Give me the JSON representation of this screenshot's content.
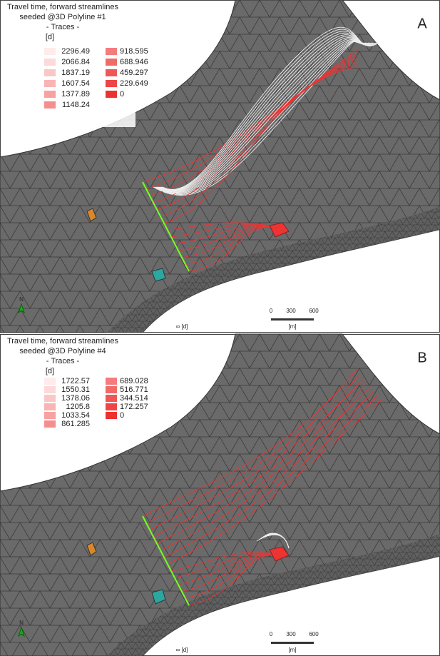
{
  "panels": [
    {
      "label": "A",
      "title_lines": [
        "Travel time, forward streamlines",
        "seeded @3D Polyline #1",
        "- Traces -"
      ],
      "unit": "[d]",
      "legend_col1": [
        "2296.49",
        "2066.84",
        "1837.19",
        "1607.54",
        "1377.89",
        "1148.24"
      ],
      "legend_col2": [
        "918.595",
        "688.946",
        "459.297",
        "229.649",
        "0"
      ],
      "scale_ticks": [
        "0",
        "300",
        "600"
      ],
      "scale_unit": "[m]",
      "infinity_label": "∞ [d]",
      "north": "N"
    },
    {
      "label": "B",
      "title_lines": [
        "Travel time, forward streamlines",
        "seeded @3D Polyline #4",
        "- Traces -"
      ],
      "unit": "[d]",
      "legend_col1": [
        "1722.57",
        "1550.31",
        "1378.06",
        "1205.8",
        "1033.54",
        "861.285"
      ],
      "legend_col2": [
        "689.028",
        "516.771",
        "344.514",
        "172.257",
        "0"
      ],
      "scale_ticks": [
        "0",
        "300",
        "600"
      ],
      "scale_unit": "[m]",
      "infinity_label": "∞ [d]",
      "north": "N"
    }
  ]
}
